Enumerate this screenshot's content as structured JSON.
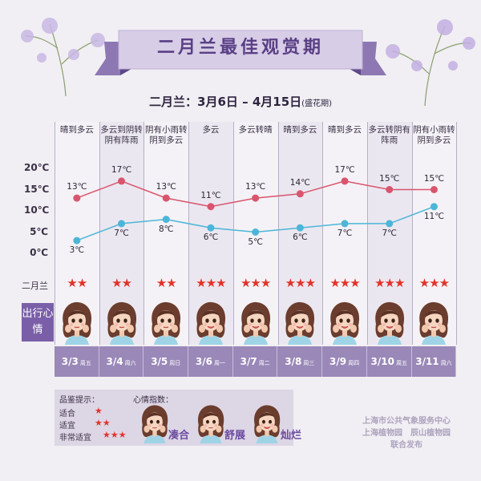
{
  "title": "二月兰最佳观赏期",
  "subtitle": {
    "label": "二月兰：",
    "range": "3月6日 – 4月15日",
    "note": "(盛花期)"
  },
  "stars_label": "二月兰",
  "mood_label": "出行心情",
  "days": [
    {
      "weather": "晴到多云",
      "date": "3/3",
      "weekday": "周五",
      "stars": 2,
      "high": 13,
      "low": 3,
      "mood": "normal"
    },
    {
      "weather": "多云到阴转阴有阵雨",
      "date": "3/4",
      "weekday": "周六",
      "stars": 2,
      "high": 17,
      "low": 7,
      "mood": "normal"
    },
    {
      "weather": "阴有小雨转阴到多云",
      "date": "3/5",
      "weekday": "周日",
      "stars": 2,
      "high": 13,
      "low": 8,
      "mood": "normal"
    },
    {
      "weather": "多云",
      "date": "3/6",
      "weekday": "周一",
      "stars": 3,
      "high": 11,
      "low": 6,
      "mood": "happy"
    },
    {
      "weather": "多云转晴",
      "date": "3/7",
      "weekday": "周二",
      "stars": 3,
      "high": 13,
      "low": 5,
      "mood": "happy"
    },
    {
      "weather": "晴到多云",
      "date": "3/8",
      "weekday": "周三",
      "stars": 3,
      "high": 14,
      "low": 6,
      "mood": "happy"
    },
    {
      "weather": "晴到多云",
      "date": "3/9",
      "weekday": "周四",
      "stars": 3,
      "high": 17,
      "low": 7,
      "mood": "happy"
    },
    {
      "weather": "多云转阴有阵雨",
      "date": "3/10",
      "weekday": "周五",
      "stars": 3,
      "high": 15,
      "low": 7,
      "mood": "happy"
    },
    {
      "weather": "阴有小雨转阴到多云",
      "date": "3/11",
      "weekday": "周六",
      "stars": 3,
      "high": 15,
      "low": 11,
      "mood": "normal"
    }
  ],
  "chart_data": {
    "type": "line",
    "categories": [
      "3/3",
      "3/4",
      "3/5",
      "3/6",
      "3/7",
      "3/8",
      "3/9",
      "3/10",
      "3/11"
    ],
    "series": [
      {
        "values": [
          13,
          17,
          13,
          11,
          13,
          14,
          17,
          15,
          15
        ],
        "color": "#d9556d"
      },
      {
        "values": [
          3,
          7,
          8,
          6,
          5,
          6,
          7,
          7,
          11
        ],
        "color": "#4cb6d8"
      }
    ],
    "unit": "℃",
    "yticks": [
      "20℃",
      "15℃",
      "10℃",
      "5℃",
      "0℃"
    ],
    "ylim": [
      0,
      20
    ],
    "grid": false
  },
  "legend": {
    "rating_title": "品鉴提示：",
    "ratings": [
      {
        "label": "适合",
        "stars": "★"
      },
      {
        "label": "适宜",
        "stars": "★★"
      },
      {
        "label": "非常适宜",
        "stars": "★★★"
      }
    ],
    "mood_title": "心情指数：",
    "moods": [
      "凑合",
      "舒展",
      "灿烂"
    ]
  },
  "publishers": {
    "line1": "上海市公共气象服务中心",
    "line2": "上海植物园　辰山植物园",
    "line3": "联合发布"
  },
  "colors": {
    "purple": "#7a5fa8",
    "purple_light": "#9a88b8",
    "star": "#e3332a",
    "high_line": "#d9556d",
    "low_line": "#4cb6d8"
  }
}
